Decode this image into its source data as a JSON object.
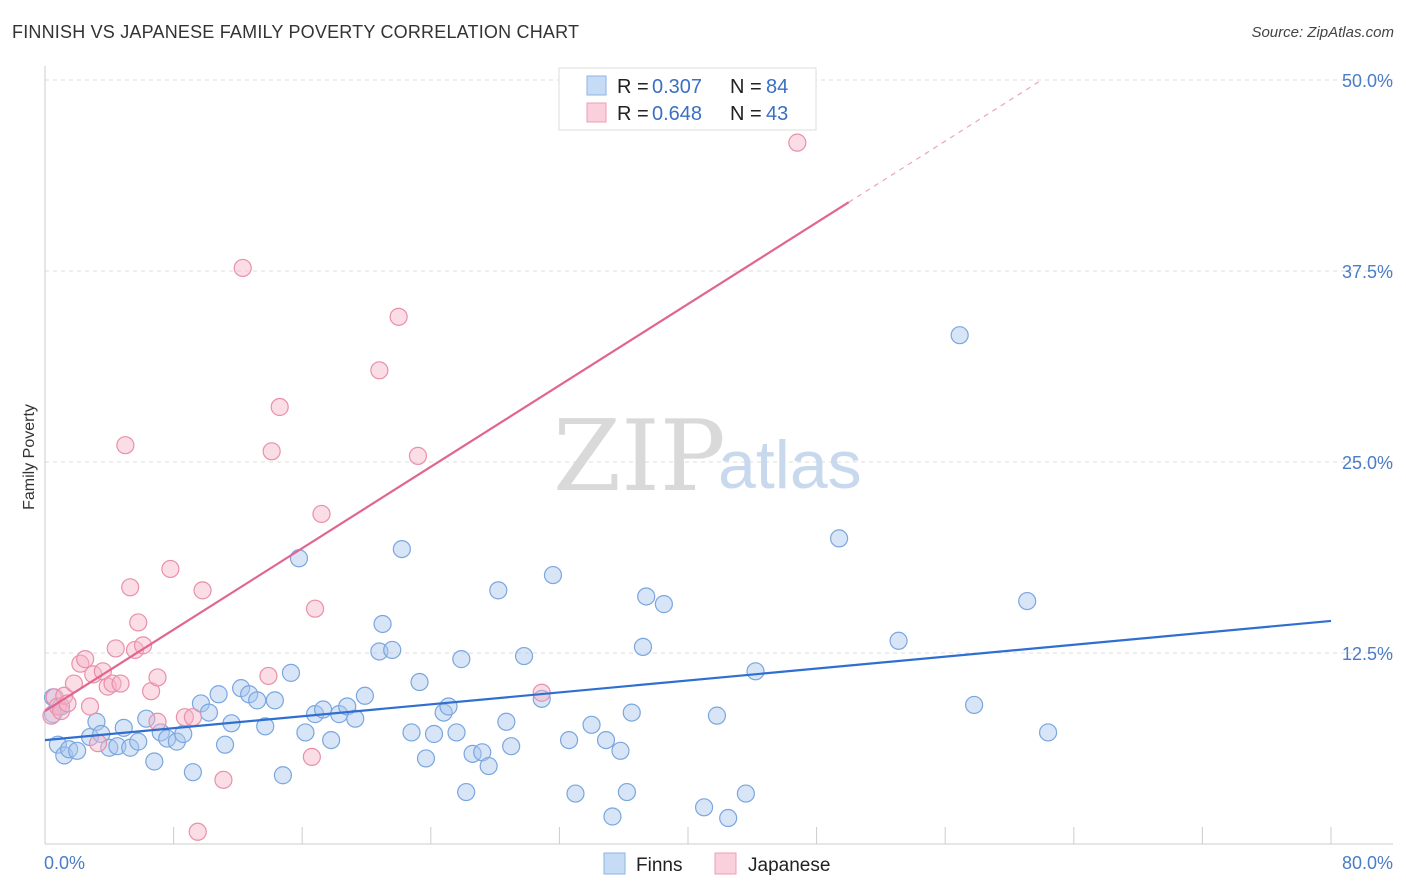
{
  "title": "FINNISH VS JAPANESE FAMILY POVERTY CORRELATION CHART",
  "source": "Source: ZipAtlas.com",
  "watermark": {
    "part1": "ZIP",
    "part2": "atlas"
  },
  "chart_data": {
    "type": "scatter",
    "xlabel": "",
    "ylabel": "Family Poverty",
    "xlim": [
      0,
      80
    ],
    "ylim": [
      0,
      50
    ],
    "x_tick_labels": [
      "0.0%",
      "80.0%"
    ],
    "y_ticks": [
      12.5,
      25.0,
      37.5,
      50.0
    ],
    "y_tick_labels": [
      "12.5%",
      "25.0%",
      "37.5%",
      "50.0%"
    ],
    "grid": "horizontal dashed",
    "legend_top": [
      {
        "r_label": "R = ",
        "r_value": "0.307",
        "n_label": "N = ",
        "n_value": "84",
        "color": "#a9c6ee"
      },
      {
        "r_label": "R = ",
        "r_value": "0.648",
        "n_label": "N = ",
        "n_value": "43",
        "color": "#f6b3c7"
      }
    ],
    "series": [
      {
        "name": "Finns",
        "color": "#a9c6ee",
        "stroke": "#7aa6df",
        "trend": {
          "color": "#2f6fcf",
          "x0": 0,
          "y0": 6.8,
          "x1": 80,
          "y1": 14.6
        },
        "points": [
          [
            0.5,
            8.5
          ],
          [
            0.5,
            9.6
          ],
          [
            0.8,
            6.5
          ],
          [
            1.0,
            9.0
          ],
          [
            1.2,
            5.8
          ],
          [
            1.5,
            6.2
          ],
          [
            2.0,
            6.1
          ],
          [
            2.8,
            7.0
          ],
          [
            3.2,
            8.0
          ],
          [
            3.5,
            7.2
          ],
          [
            4.0,
            6.3
          ],
          [
            4.5,
            6.4
          ],
          [
            4.9,
            7.6
          ],
          [
            5.3,
            6.3
          ],
          [
            5.8,
            6.7
          ],
          [
            6.3,
            8.2
          ],
          [
            6.8,
            5.4
          ],
          [
            7.2,
            7.3
          ],
          [
            7.6,
            6.9
          ],
          [
            8.2,
            6.7
          ],
          [
            8.6,
            7.2
          ],
          [
            9.2,
            4.7
          ],
          [
            9.7,
            9.2
          ],
          [
            10.2,
            8.6
          ],
          [
            10.8,
            9.8
          ],
          [
            11.2,
            6.5
          ],
          [
            11.6,
            7.9
          ],
          [
            12.2,
            10.2
          ],
          [
            12.7,
            9.8
          ],
          [
            13.2,
            9.4
          ],
          [
            13.7,
            7.7
          ],
          [
            14.3,
            9.4
          ],
          [
            14.8,
            4.5
          ],
          [
            15.3,
            11.2
          ],
          [
            15.8,
            18.7
          ],
          [
            16.2,
            7.3
          ],
          [
            16.8,
            8.5
          ],
          [
            17.3,
            8.8
          ],
          [
            17.8,
            6.8
          ],
          [
            18.3,
            8.5
          ],
          [
            18.8,
            9.0
          ],
          [
            19.3,
            8.2
          ],
          [
            19.9,
            9.7
          ],
          [
            20.8,
            12.6
          ],
          [
            21.0,
            14.4
          ],
          [
            21.6,
            12.7
          ],
          [
            22.2,
            19.3
          ],
          [
            22.8,
            7.3
          ],
          [
            23.3,
            10.6
          ],
          [
            23.7,
            5.6
          ],
          [
            24.2,
            7.2
          ],
          [
            24.8,
            8.6
          ],
          [
            25.1,
            9.0
          ],
          [
            25.6,
            7.3
          ],
          [
            25.9,
            12.1
          ],
          [
            26.2,
            3.4
          ],
          [
            26.6,
            5.9
          ],
          [
            27.2,
            6.0
          ],
          [
            27.6,
            5.1
          ],
          [
            28.2,
            16.6
          ],
          [
            28.7,
            8.0
          ],
          [
            29.0,
            6.4
          ],
          [
            29.8,
            12.3
          ],
          [
            30.9,
            9.5
          ],
          [
            31.6,
            17.6
          ],
          [
            32.6,
            6.8
          ],
          [
            33.0,
            3.3
          ],
          [
            34.0,
            7.8
          ],
          [
            34.9,
            6.8
          ],
          [
            35.3,
            1.8
          ],
          [
            35.8,
            6.1
          ],
          [
            36.2,
            3.4
          ],
          [
            36.5,
            8.6
          ],
          [
            37.2,
            12.9
          ],
          [
            37.4,
            16.2
          ],
          [
            38.5,
            15.7
          ],
          [
            41.0,
            2.4
          ],
          [
            41.8,
            8.4
          ],
          [
            42.5,
            1.7
          ],
          [
            43.6,
            3.3
          ],
          [
            44.2,
            11.3
          ],
          [
            49.4,
            20.0
          ],
          [
            53.1,
            13.3
          ],
          [
            56.9,
            33.3
          ],
          [
            57.8,
            9.1
          ],
          [
            61.1,
            15.9
          ],
          [
            62.4,
            7.3
          ]
        ]
      },
      {
        "name": "Japanese",
        "color": "#f6b3c7",
        "stroke": "#ea8fab",
        "trend": {
          "color": "#e0668f",
          "x0": 0,
          "y0": 8.7,
          "x1": 50,
          "y1": 42.0,
          "dash_to_x": 62,
          "dash_to_y": 50.0
        },
        "points": [
          [
            0.4,
            8.4
          ],
          [
            0.6,
            9.6
          ],
          [
            0.8,
            9.0
          ],
          [
            1.0,
            8.7
          ],
          [
            1.2,
            9.7
          ],
          [
            1.4,
            9.2
          ],
          [
            1.8,
            10.5
          ],
          [
            2.2,
            11.8
          ],
          [
            2.5,
            12.1
          ],
          [
            2.8,
            9.0
          ],
          [
            3.0,
            11.1
          ],
          [
            3.3,
            6.6
          ],
          [
            3.6,
            11.3
          ],
          [
            3.9,
            10.3
          ],
          [
            4.2,
            10.5
          ],
          [
            4.4,
            12.8
          ],
          [
            4.7,
            10.5
          ],
          [
            5.0,
            26.1
          ],
          [
            5.3,
            16.8
          ],
          [
            5.6,
            12.7
          ],
          [
            5.8,
            14.5
          ],
          [
            6.1,
            13.0
          ],
          [
            6.6,
            10.0
          ],
          [
            7.0,
            8.0
          ],
          [
            7.0,
            10.9
          ],
          [
            7.8,
            18.0
          ],
          [
            8.7,
            8.3
          ],
          [
            9.2,
            8.3
          ],
          [
            9.5,
            0.8
          ],
          [
            9.8,
            16.6
          ],
          [
            11.1,
            4.2
          ],
          [
            12.3,
            37.7
          ],
          [
            13.9,
            11.0
          ],
          [
            14.1,
            25.7
          ],
          [
            14.6,
            28.6
          ],
          [
            16.6,
            5.7
          ],
          [
            16.8,
            15.4
          ],
          [
            17.2,
            21.6
          ],
          [
            20.8,
            31.0
          ],
          [
            22.0,
            34.5
          ],
          [
            23.2,
            25.4
          ],
          [
            30.9,
            9.9
          ],
          [
            46.8,
            45.9
          ]
        ]
      }
    ]
  },
  "bottom_legend": [
    {
      "label": "Finns",
      "color": "#a9c6ee"
    },
    {
      "label": "Japanese",
      "color": "#f6b3c7"
    }
  ]
}
